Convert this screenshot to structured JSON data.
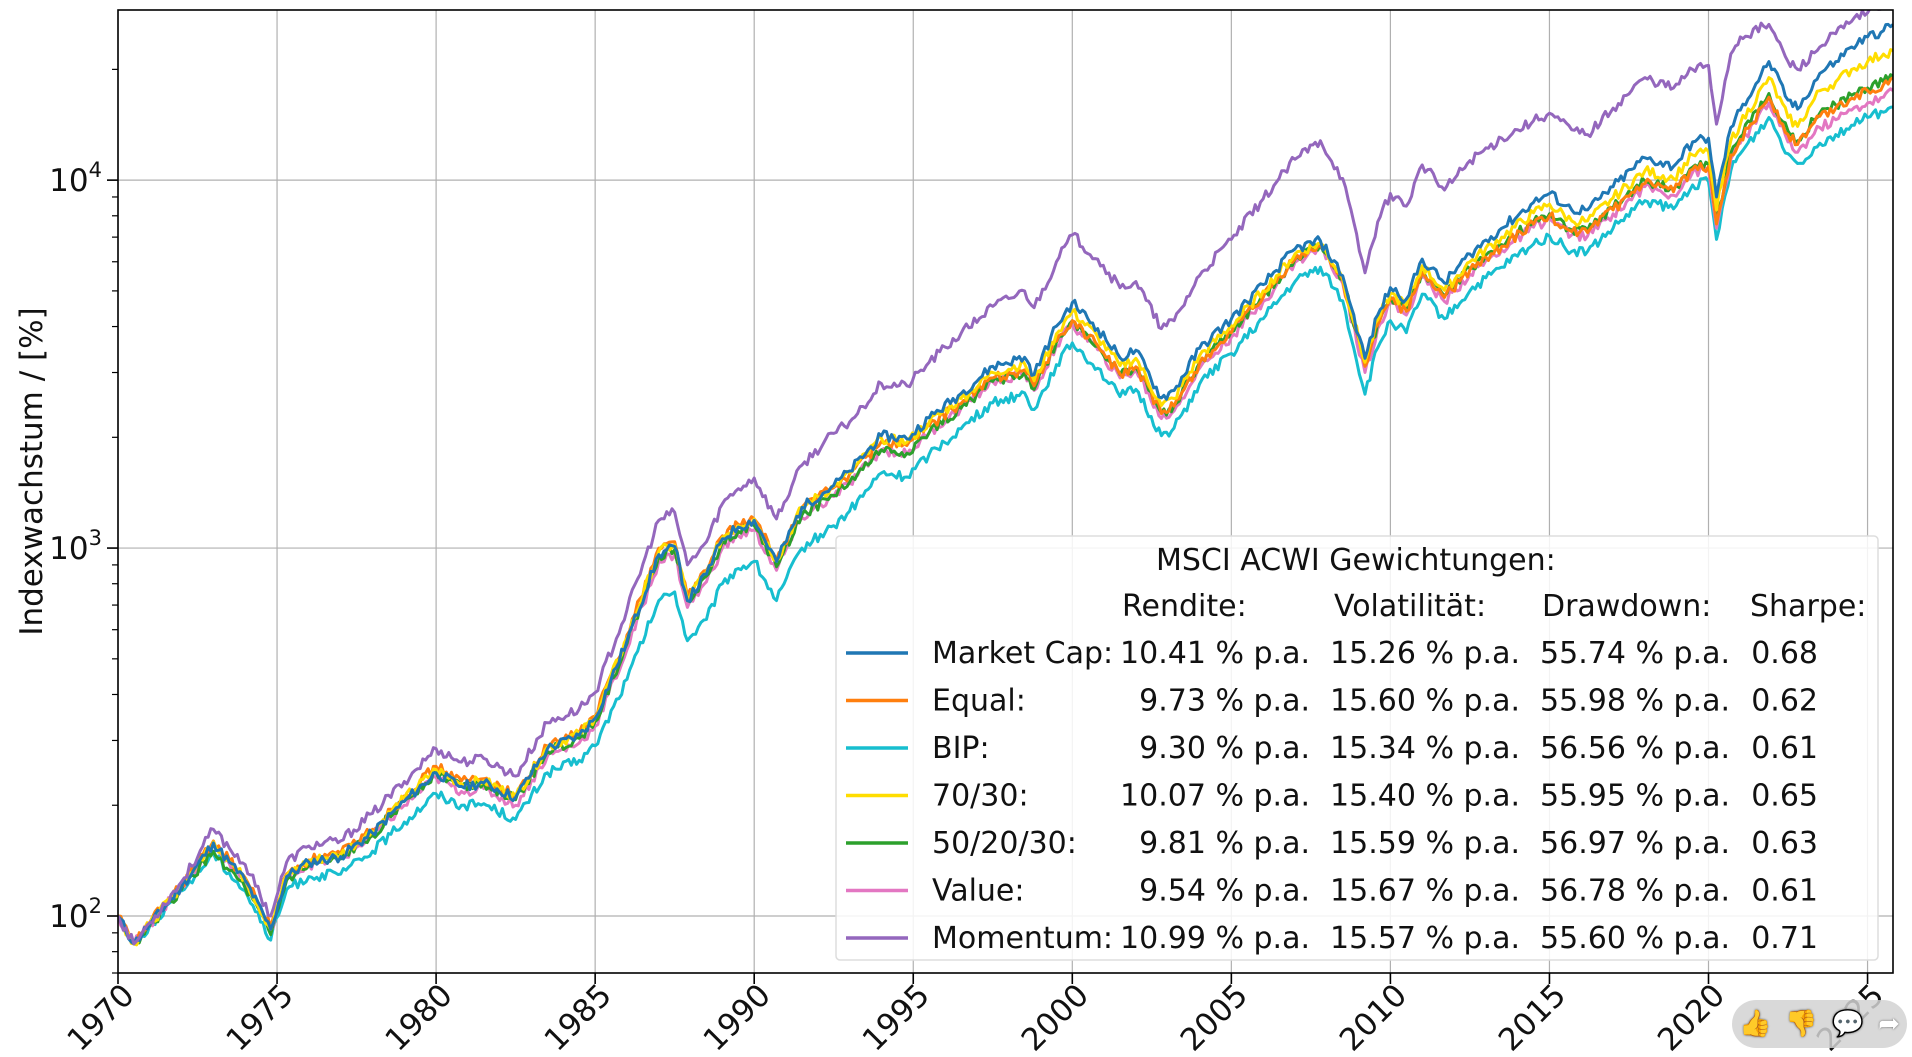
{
  "chart_data": {
    "type": "line",
    "ylabel": "Indexwachstum / [%]",
    "yscale": "log",
    "ylim": [
      70,
      29000
    ],
    "xlim": [
      1970.0,
      2025.8
    ],
    "grid": true,
    "x_ticks": [
      1970,
      1975,
      1980,
      1985,
      1990,
      1995,
      2000,
      2005,
      2010,
      2015,
      2020,
      2025
    ],
    "y_ticks": [
      {
        "value": 100,
        "base": "10",
        "exp": "2"
      },
      {
        "value": 1000,
        "base": "10",
        "exp": "3"
      },
      {
        "value": 10000,
        "base": "10",
        "exp": "4"
      }
    ],
    "x": [
      1970.0,
      1970.5,
      1971.0,
      1972.0,
      1973.0,
      1973.5,
      1974.0,
      1974.8,
      1975.3,
      1976.0,
      1977.0,
      1978.0,
      1979.0,
      1980.0,
      1980.8,
      1981.5,
      1982.5,
      1983.5,
      1984.5,
      1985.0,
      1986.0,
      1987.0,
      1987.5,
      1987.9,
      1988.5,
      1989.0,
      1989.5,
      1990.0,
      1990.7,
      1991.5,
      1992.5,
      1993.0,
      1994.0,
      1994.8,
      1995.5,
      1996.5,
      1997.5,
      1998.5,
      1998.8,
      1999.5,
      2000.0,
      2000.8,
      2001.5,
      2002.0,
      2002.8,
      2003.2,
      2004.0,
      2005.0,
      2006.0,
      2007.0,
      2007.8,
      2008.5,
      2009.2,
      2009.6,
      2010.0,
      2010.5,
      2011.0,
      2011.7,
      2012.5,
      2013.5,
      2014.5,
      2015.0,
      2015.7,
      2016.2,
      2017.0,
      2018.0,
      2018.9,
      2019.5,
      2020.0,
      2020.25,
      2020.7,
      2021.0,
      2021.9,
      2022.5,
      2022.8,
      2023.5,
      2024.0,
      2024.5,
      2025.0,
      2025.5,
      2025.8
    ],
    "series": [
      {
        "name": "Market Cap:",
        "color": "#1f77b4",
        "stats": {
          "rendite": "10.41 % p.a.",
          "volatilitaet": "15.26 % p.a.",
          "drawdown": "55.74 % p.a.",
          "sharpe": "0.68"
        },
        "values": [
          100,
          84,
          95,
          120,
          158,
          140,
          125,
          92,
          128,
          140,
          145,
          168,
          205,
          245,
          225,
          230,
          210,
          285,
          310,
          345,
          560,
          960,
          1010,
          720,
          850,
          1060,
          1140,
          1190,
          920,
          1290,
          1480,
          1620,
          2020,
          1980,
          2260,
          2630,
          3120,
          3300,
          2960,
          4010,
          4650,
          3950,
          3290,
          3450,
          2560,
          2680,
          3490,
          4200,
          5200,
          6500,
          6840,
          5500,
          3280,
          4300,
          5100,
          4750,
          6100,
          5250,
          6300,
          7400,
          8700,
          9200,
          8300,
          8300,
          9600,
          11500,
          10900,
          12700,
          13000,
          9000,
          13900,
          15500,
          21000,
          16500,
          15600,
          19500,
          21000,
          23000,
          24500,
          25500,
          26500
        ]
      },
      {
        "name": "Equal:",
        "color": "#ff7f0e",
        "stats": {
          "rendite": "9.73 % p.a.",
          "volatilitaet": "15.60 % p.a.",
          "drawdown": "55.98 % p.a.",
          "sharpe": "0.62"
        },
        "values": [
          100,
          84,
          96,
          122,
          160,
          142,
          127,
          93,
          130,
          142,
          148,
          172,
          212,
          255,
          233,
          236,
          212,
          290,
          315,
          350,
          580,
          1000,
          1040,
          740,
          870,
          1080,
          1160,
          1200,
          930,
          1290,
          1460,
          1590,
          1950,
          1900,
          2150,
          2470,
          2900,
          3050,
          2760,
          3650,
          4150,
          3550,
          2970,
          3110,
          2320,
          2430,
          3180,
          3850,
          4800,
          6100,
          6650,
          5350,
          3120,
          4050,
          4750,
          4400,
          5600,
          4800,
          5700,
          6600,
          7600,
          8000,
          7250,
          7200,
          8300,
          9800,
          9300,
          10700,
          10900,
          7600,
          11700,
          12900,
          16800,
          13300,
          12500,
          14900,
          15700,
          16700,
          17500,
          18200,
          19000
        ]
      },
      {
        "name": "BIP:",
        "color": "#17becf",
        "stats": {
          "rendite": "9.30 % p.a.",
          "volatilitaet": "15.34 % p.a.",
          "drawdown": "56.56 % p.a.",
          "sharpe": "0.61"
        },
        "values": [
          100,
          84,
          94,
          117,
          148,
          131,
          117,
          86,
          118,
          128,
          130,
          150,
          180,
          215,
          200,
          202,
          183,
          245,
          265,
          290,
          440,
          720,
          760,
          560,
          640,
          800,
          880,
          920,
          720,
          1000,
          1150,
          1260,
          1600,
          1560,
          1800,
          2110,
          2480,
          2640,
          2380,
          3150,
          3610,
          3080,
          2580,
          2700,
          2020,
          2120,
          2790,
          3380,
          4200,
          5300,
          5800,
          4700,
          2620,
          3500,
          4150,
          3850,
          4900,
          4200,
          5000,
          5800,
          6700,
          7050,
          6400,
          6400,
          7400,
          8800,
          8350,
          9700,
          9900,
          6900,
          10600,
          11800,
          14800,
          11800,
          11100,
          12600,
          13300,
          14100,
          14800,
          15300,
          15800
        ]
      },
      {
        "name": "70/30:",
        "color": "#ffdd00",
        "stats": {
          "rendite": "10.07 % p.a.",
          "volatilitaet": "15.40 % p.a.",
          "drawdown": "55.95 % p.a.",
          "sharpe": "0.65"
        },
        "values": [
          100,
          84,
          95,
          121,
          159,
          141,
          126,
          92,
          129,
          141,
          147,
          170,
          209,
          250,
          229,
          233,
          211,
          288,
          313,
          348,
          570,
          980,
          1020,
          730,
          860,
          1070,
          1150,
          1200,
          925,
          1290,
          1470,
          1600,
          1990,
          1940,
          2200,
          2550,
          3000,
          3170,
          2850,
          3820,
          4400,
          3750,
          3130,
          3280,
          2440,
          2550,
          3330,
          4020,
          5000,
          6300,
          6750,
          5420,
          3200,
          4170,
          4920,
          4570,
          5850,
          5020,
          6000,
          7000,
          8150,
          8600,
          7750,
          7750,
          8950,
          10600,
          10100,
          11700,
          11950,
          8300,
          12800,
          14200,
          19000,
          14800,
          14000,
          17500,
          18500,
          20000,
          21000,
          22000,
          22500
        ]
      },
      {
        "name": "50/20/30:",
        "color": "#2ca02c",
        "stats": {
          "rendite": "9.81 % p.a.",
          "volatilitaet": "15.59 % p.a.",
          "drawdown": "56.97 % p.a.",
          "sharpe": "0.63"
        },
        "values": [
          100,
          84,
          94,
          118,
          150,
          133,
          119,
          89,
          125,
          137,
          143,
          166,
          205,
          245,
          226,
          230,
          207,
          280,
          304,
          338,
          550,
          950,
          990,
          720,
          840,
          1040,
          1110,
          1150,
          890,
          1230,
          1390,
          1510,
          1850,
          1810,
          2060,
          2400,
          2840,
          3000,
          2700,
          3620,
          4150,
          3540,
          2960,
          3100,
          2330,
          2440,
          3190,
          3870,
          4820,
          6100,
          6700,
          5380,
          3140,
          4080,
          4800,
          4450,
          5650,
          4850,
          5750,
          6680,
          7700,
          8100,
          7330,
          7300,
          8400,
          9950,
          9450,
          10850,
          11050,
          7700,
          11850,
          13100,
          17200,
          13600,
          12800,
          15200,
          16000,
          17000,
          17800,
          18500,
          19200
        ]
      },
      {
        "name": "Value:",
        "color": "#e377c2",
        "stats": {
          "rendite": "9.54 % p.a.",
          "volatilitaet": "15.67 % p.a.",
          "drawdown": "56.78 % p.a.",
          "sharpe": "0.61"
        },
        "values": [
          100,
          84,
          95,
          120,
          157,
          139,
          124,
          91,
          127,
          138,
          143,
          165,
          200,
          238,
          218,
          222,
          200,
          272,
          295,
          328,
          530,
          920,
          960,
          690,
          810,
          1000,
          1080,
          1120,
          870,
          1210,
          1380,
          1500,
          1850,
          1800,
          2060,
          2400,
          2830,
          2980,
          2680,
          3550,
          4050,
          3460,
          2900,
          3040,
          2250,
          2360,
          3080,
          3750,
          4680,
          5980,
          6550,
          5250,
          3000,
          3950,
          4650,
          4300,
          5450,
          4680,
          5550,
          6450,
          7450,
          7850,
          7100,
          7050,
          8100,
          9600,
          9100,
          10500,
          10700,
          7400,
          11400,
          12600,
          16200,
          12700,
          11900,
          13900,
          14600,
          15500,
          16200,
          16800,
          17500
        ]
      },
      {
        "name": "Momentum:",
        "color": "#9467bd",
        "stats": {
          "rendite": "10.99 % p.a.",
          "volatilitaet": "15.57 % p.a.",
          "drawdown": "55.60 % p.a.",
          "sharpe": "0.71"
        },
        "values": [
          100,
          84,
          96,
          124,
          172,
          153,
          138,
          100,
          140,
          155,
          160,
          190,
          232,
          285,
          262,
          268,
          240,
          335,
          365,
          405,
          680,
          1190,
          1250,
          900,
          1040,
          1320,
          1450,
          1550,
          1200,
          1680,
          2050,
          2200,
          2800,
          2760,
          3200,
          3830,
          4540,
          5000,
          4500,
          6000,
          7100,
          6100,
          5100,
          5300,
          3950,
          4150,
          5500,
          6900,
          8900,
          11400,
          12800,
          10100,
          5600,
          7700,
          9200,
          8500,
          11000,
          9400,
          11300,
          13000,
          14500,
          15200,
          13700,
          13300,
          15700,
          19000,
          17800,
          20000,
          20500,
          14200,
          22000,
          24500,
          26500,
          21000,
          20000,
          23000,
          25000,
          27000,
          28500,
          30000,
          31000
        ]
      }
    ],
    "legend": {
      "title": "MSCI ACWI Gewichtungen:",
      "columns": [
        "Rendite:",
        "Volatilität:",
        "Drawdown:",
        "Sharpe:"
      ],
      "placement": "bottom-right"
    }
  },
  "player": {
    "like_icon": "thumbs-up-icon",
    "dislike_icon": "thumbs-down-icon",
    "comment_icon": "comment-icon",
    "share_icon": "share-icon"
  }
}
